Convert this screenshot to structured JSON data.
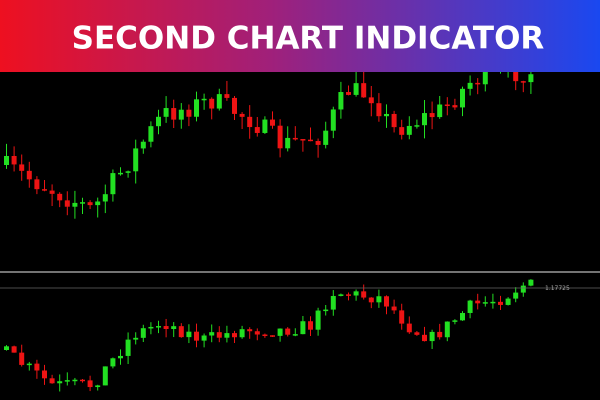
{
  "header": {
    "title": "SECOND CHART INDICATOR"
  },
  "lower_panel": {
    "price_label": "1.17725"
  }
}
